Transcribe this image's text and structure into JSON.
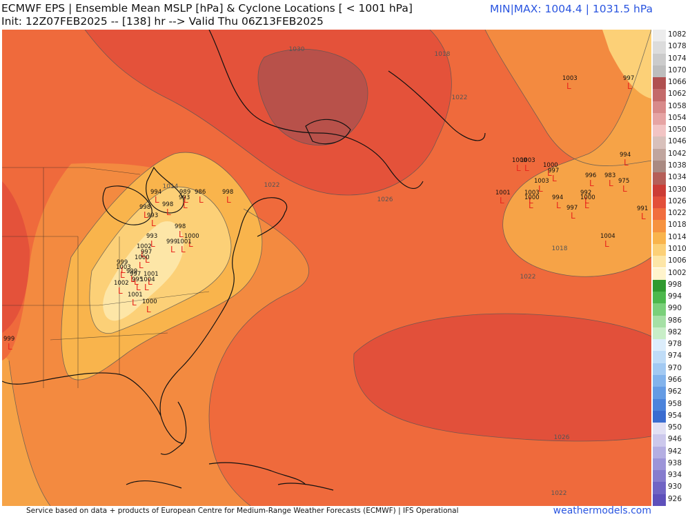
{
  "header": {
    "line1": "ECMWF EPS | Ensemble Mean MSLP [hPa] & Cyclone Locations [ < 1001 hPa]",
    "line2": "Init: 12Z07FEB2025 -- [138] hr --> Valid Thu 06Z13FEB2025",
    "minmax": "MIN|MAX: 1004.4 | 1031.5 hPa"
  },
  "footer": {
    "credit": "Service based on data + products of European Centre for Medium-Range Weather Forecasts (ECMWF) | IFS Operational",
    "brand": "weathermodels.com"
  },
  "legend": [
    {
      "label": "1082",
      "color": "#ececec"
    },
    {
      "label": "1078",
      "color": "#dcdcdc"
    },
    {
      "label": "1074",
      "color": "#cbcbcb"
    },
    {
      "label": "1070",
      "color": "#bdbdbd"
    },
    {
      "label": "1066",
      "color": "#b05050"
    },
    {
      "label": "1062",
      "color": "#c46a6a"
    },
    {
      "label": "1058",
      "color": "#d88a8a"
    },
    {
      "label": "1054",
      "color": "#e6a4a4"
    },
    {
      "label": "1050",
      "color": "#f2c4c4"
    },
    {
      "label": "1046",
      "color": "#d8c0bb"
    },
    {
      "label": "1042",
      "color": "#c0a59e"
    },
    {
      "label": "1038",
      "color": "#a98a82"
    },
    {
      "label": "1034",
      "color": "#b55f58"
    },
    {
      "label": "1030",
      "color": "#cc3c35"
    },
    {
      "label": "1026",
      "color": "#e34f3a"
    },
    {
      "label": "1022",
      "color": "#f16d3e"
    },
    {
      "label": "1018",
      "color": "#f6923f"
    },
    {
      "label": "1014",
      "color": "#f9b44c"
    },
    {
      "label": "1010",
      "color": "#fcd077"
    },
    {
      "label": "1006",
      "color": "#fde6a7"
    },
    {
      "label": "1002",
      "color": "#fff4cc"
    },
    {
      "label": "998",
      "color": "#2f9a2f"
    },
    {
      "label": "994",
      "color": "#4cb84c"
    },
    {
      "label": "990",
      "color": "#7ad07a"
    },
    {
      "label": "986",
      "color": "#a5e0a5"
    },
    {
      "label": "982",
      "color": "#c8eec8"
    },
    {
      "label": "978",
      "color": "#dcedfb"
    },
    {
      "label": "974",
      "color": "#bfdcf7"
    },
    {
      "label": "970",
      "color": "#a2c9f2"
    },
    {
      "label": "966",
      "color": "#82b3ec"
    },
    {
      "label": "962",
      "color": "#649be4"
    },
    {
      "label": "958",
      "color": "#4b83db"
    },
    {
      "label": "954",
      "color": "#3a6cd0"
    },
    {
      "label": "950",
      "color": "#e2e0f4"
    },
    {
      "label": "946",
      "color": "#ccc8ec"
    },
    {
      "label": "942",
      "color": "#b4aee2"
    },
    {
      "label": "938",
      "color": "#9c94d8"
    },
    {
      "label": "934",
      "color": "#867cce"
    },
    {
      "label": "930",
      "color": "#7064c4"
    },
    {
      "label": "926",
      "color": "#5e50bb"
    }
  ],
  "isobar_labels": [
    "1030",
    "1026",
    "1022",
    "1018",
    "1014",
    "1022",
    "1018",
    "1022",
    "1026",
    "1022"
  ],
  "lows": [
    {
      "value": "1003"
    },
    {
      "value": "997"
    },
    {
      "value": "1000"
    },
    {
      "value": "1003"
    },
    {
      "value": "1000"
    },
    {
      "value": "997"
    },
    {
      "value": "1003"
    },
    {
      "value": "994"
    },
    {
      "value": "996"
    },
    {
      "value": "983"
    },
    {
      "value": "975"
    },
    {
      "value": "1001"
    },
    {
      "value": "1003"
    },
    {
      "value": "1000"
    },
    {
      "value": "994"
    },
    {
      "value": "992"
    },
    {
      "value": "1000"
    },
    {
      "value": "997"
    },
    {
      "value": "991"
    },
    {
      "value": "1004"
    },
    {
      "value": "994"
    },
    {
      "value": "989"
    },
    {
      "value": "993"
    },
    {
      "value": "986"
    },
    {
      "value": "998"
    },
    {
      "value": "998"
    },
    {
      "value": "993"
    },
    {
      "value": "998"
    },
    {
      "value": "998"
    },
    {
      "value": "993"
    },
    {
      "value": "1000"
    },
    {
      "value": "999"
    },
    {
      "value": "1001"
    },
    {
      "value": "1002"
    },
    {
      "value": "997"
    },
    {
      "value": "1000"
    },
    {
      "value": "999"
    },
    {
      "value": "1003"
    },
    {
      "value": "999"
    },
    {
      "value": "997"
    },
    {
      "value": "1001"
    },
    {
      "value": "995"
    },
    {
      "value": "1004"
    },
    {
      "value": "1002"
    },
    {
      "value": "1001"
    },
    {
      "value": "1000"
    },
    {
      "value": "999"
    }
  ]
}
